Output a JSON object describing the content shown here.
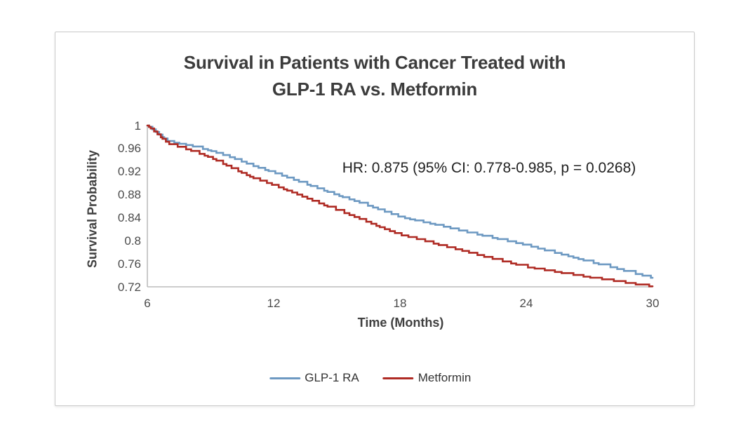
{
  "chart": {
    "title_line1": "Survival in Patients with Cancer Treated with",
    "title_line2": "GLP-1 RA vs. Metformin",
    "annotation": "HR: 0.875 (95% CI: 0.778-0.985, p = 0.0268)",
    "y_axis": {
      "label": "Survival Probability",
      "tick_labels": [
        "1",
        "0.96",
        "0.92",
        "0.88",
        "0.84",
        "0.8",
        "0.76",
        "0.72"
      ],
      "tick_values": [
        1,
        0.96,
        0.92,
        0.88,
        0.84,
        0.8,
        0.76,
        0.72
      ]
    },
    "x_axis": {
      "label": "Time (Months)",
      "tick_labels": [
        "6",
        "12",
        "18",
        "24",
        "30"
      ],
      "tick_values": [
        6,
        12,
        18,
        24,
        30
      ]
    },
    "legend_items": [
      {
        "label": "GLP-1 RA",
        "color": "#6d99c2"
      },
      {
        "label": "Metformin",
        "color": "#af2b24"
      }
    ]
  },
  "chart_data": {
    "type": "line",
    "subtype": "kaplan-meier-step",
    "title": "Survival in Patients with Cancer Treated with GLP-1 RA vs. Metformin",
    "xlabel": "Time (Months)",
    "ylabel": "Survival Probability",
    "xlim": [
      6,
      30
    ],
    "ylim": [
      0.72,
      1.0
    ],
    "grid": false,
    "legend_position": "bottom",
    "annotation": "HR: 0.875 (95% CI: 0.778-0.985, p = 0.0268)",
    "x": [
      6,
      7,
      8,
      9,
      10,
      11,
      12,
      13,
      14,
      15,
      16,
      17,
      18,
      19,
      20,
      21,
      22,
      23,
      24,
      25,
      26,
      27,
      28,
      29,
      30
    ],
    "series": [
      {
        "name": "GLP-1 RA",
        "color": "#6d99c2",
        "values": [
          1.0,
          0.972,
          0.965,
          0.956,
          0.944,
          0.93,
          0.918,
          0.905,
          0.892,
          0.879,
          0.867,
          0.854,
          0.841,
          0.833,
          0.825,
          0.816,
          0.808,
          0.8,
          0.792,
          0.782,
          0.773,
          0.763,
          0.754,
          0.744,
          0.735
        ]
      },
      {
        "name": "Metformin",
        "color": "#af2b24",
        "values": [
          1.0,
          0.968,
          0.957,
          0.944,
          0.926,
          0.909,
          0.896,
          0.882,
          0.867,
          0.853,
          0.839,
          0.824,
          0.81,
          0.801,
          0.791,
          0.782,
          0.772,
          0.763,
          0.754,
          0.748,
          0.742,
          0.736,
          0.731,
          0.725,
          0.72
        ]
      }
    ]
  }
}
